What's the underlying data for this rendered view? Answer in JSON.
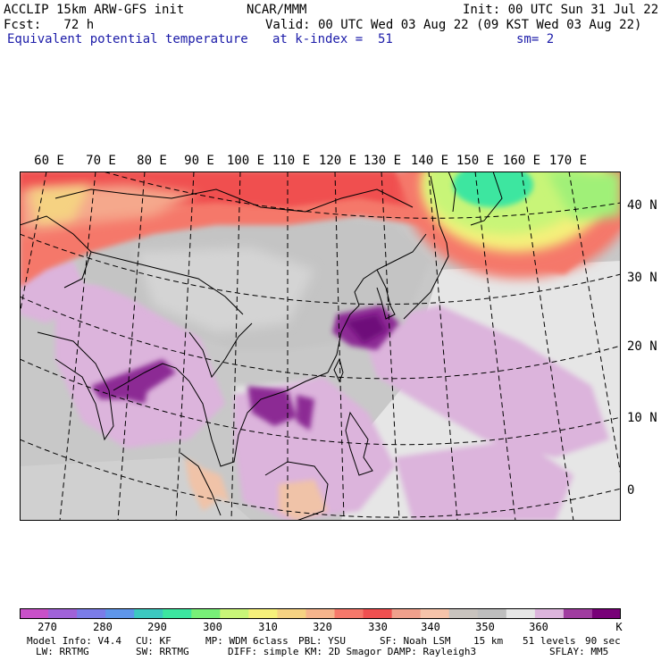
{
  "header": {
    "model": "ACCLIP 15km ARW-GFS init",
    "org": "NCAR/MMM",
    "init": "Init: 00 UTC Sun 31 Jul 22",
    "fcst": "Fcst:   72 h",
    "valid": "Valid: 00 UTC Wed 03 Aug 22 (09 KST Wed 03 Aug 22)",
    "field": "Equivalent potential temperature",
    "level": "at k-index =  51",
    "smooth": "sm= 2"
  },
  "map": {
    "lon_labels": [
      "60 E",
      "70 E",
      "80 E",
      "90 E",
      "100 E",
      "110 E",
      "120 E",
      "130 E",
      "140 E",
      "150 E",
      "160 E",
      "170 E"
    ],
    "lat_labels": [
      "40 N",
      "30 N",
      "20 N",
      "10 N",
      "0"
    ]
  },
  "colorbar": {
    "colors": [
      "#c850c8",
      "#a062d8",
      "#7b7ce8",
      "#5f96ea",
      "#3cc8c0",
      "#3ce6a0",
      "#78f078",
      "#c8f578",
      "#f5f07a",
      "#f5d282",
      "#f5b48c",
      "#f5786a",
      "#f05050",
      "#f0a08c",
      "#f5c3aa",
      "#c8c3be",
      "#bebebe",
      "#e6e6e6",
      "#dcb4dc",
      "#a03ca0",
      "#780078"
    ],
    "ticks": [
      "270",
      "280",
      "290",
      "300",
      "310",
      "320",
      "330",
      "340",
      "350",
      "360"
    ],
    "unit": "K"
  },
  "model_info": {
    "line1": [
      {
        "label": "Model Info: V4.4"
      },
      {
        "label": "CU: KF"
      },
      {
        "label": "MP: WDM 6class"
      },
      {
        "label": "PBL: YSU"
      },
      {
        "label": "SF: Noah LSM"
      },
      {
        "label": "15 km"
      },
      {
        "label": "51 levels"
      },
      {
        "label": "90 sec"
      }
    ],
    "line2": [
      {
        "label": "LW: RRTMG"
      },
      {
        "label": "SW: RRTMG"
      },
      {
        "label": "DIFF: simple KM: 2D Smagor DAMP: Rayleigh3"
      },
      {
        "label": "SFLAY: MM5"
      }
    ]
  }
}
